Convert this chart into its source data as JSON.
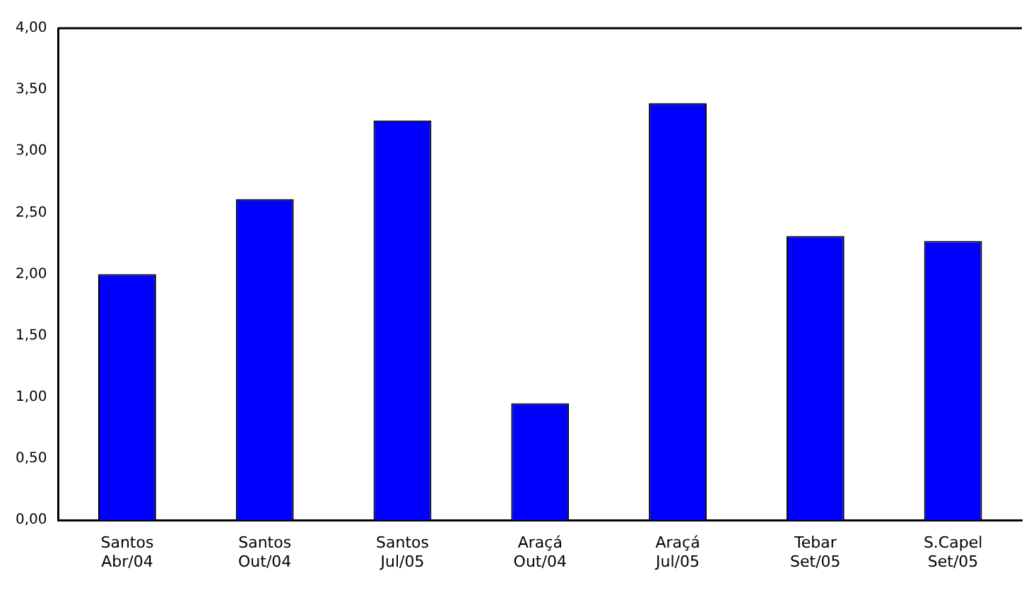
{
  "chart_data": {
    "type": "bar",
    "categories": [
      "Santos Abr/04",
      "Santos Out/04",
      "Santos Jul/05",
      "Araçá Out/04",
      "Araçá Jul/05",
      "Tebar Set/05",
      "S.Capel Set/05"
    ],
    "values": [
      2.0,
      2.61,
      3.25,
      0.95,
      3.39,
      2.31,
      2.27
    ],
    "color": "#0000ff",
    "ylim": [
      0,
      4
    ],
    "yticks": [
      {
        "value": 0,
        "label": "0,00"
      },
      {
        "value": 0.5,
        "label": "0,50"
      },
      {
        "value": 1,
        "label": "1,00"
      },
      {
        "value": 1.5,
        "label": "1,50"
      },
      {
        "value": 2,
        "label": "2,00"
      },
      {
        "value": 2.5,
        "label": "2,50"
      },
      {
        "value": 3,
        "label": "3,00"
      },
      {
        "value": 3.5,
        "label": "3,50"
      },
      {
        "value": 4,
        "label": "4,00"
      }
    ],
    "grid": false,
    "legend": false
  }
}
